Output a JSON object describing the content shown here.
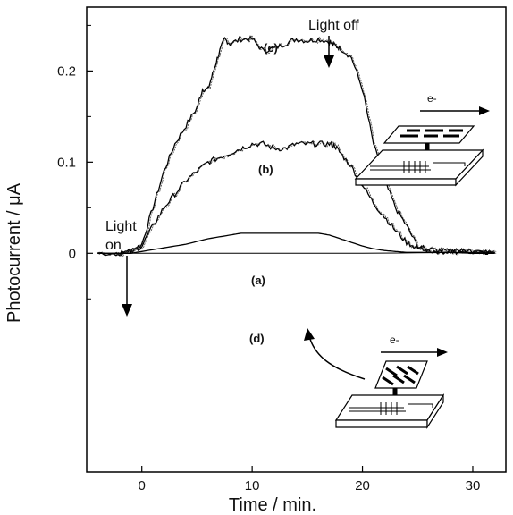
{
  "chart_data": {
    "type": "line",
    "title": "",
    "xlabel": "Time / min.",
    "ylabel": "Photocurrent / μA",
    "xlim": [
      -5,
      33
    ],
    "ylim": [
      -0.24,
      0.27
    ],
    "x_ticks": [
      0,
      10,
      20,
      30
    ],
    "y_ticks": [
      0,
      0.1,
      0.2
    ],
    "y_minor_ticks": [
      -0.05,
      0.05,
      0.15,
      0.25
    ],
    "y_tick_labels": [
      "0",
      "0.1",
      "0.2"
    ],
    "x_tick_labels": [
      "0",
      "10",
      "20",
      "30"
    ],
    "grid": false,
    "series": [
      {
        "name": "(c)",
        "x": [
          -4,
          -2,
          -1,
          0,
          1,
          2,
          3,
          4,
          5,
          5.5,
          6,
          6.5,
          7,
          7.5,
          8,
          9,
          10,
          11,
          12,
          13,
          14,
          15,
          16,
          17,
          17.5,
          18,
          19,
          20,
          21,
          22,
          23,
          24,
          25,
          26,
          27,
          28,
          29,
          30,
          31,
          32
        ],
        "y": [
          0,
          0,
          0.002,
          0.01,
          0.05,
          0.09,
          0.12,
          0.14,
          0.16,
          0.18,
          0.18,
          0.2,
          0.22,
          0.235,
          0.23,
          0.235,
          0.235,
          0.222,
          0.225,
          0.23,
          0.235,
          0.233,
          0.235,
          0.232,
          0.228,
          0.225,
          0.215,
          0.18,
          0.12,
          0.08,
          0.05,
          0.03,
          0.008,
          0.003,
          0.002,
          0.002,
          0.003,
          0.002,
          0.002,
          0.001
        ]
      },
      {
        "name": "(b)",
        "x": [
          -4,
          -2,
          -1,
          0,
          1,
          2,
          3,
          4,
          5,
          6,
          7,
          8,
          9,
          10,
          11,
          12,
          13,
          14,
          15,
          16,
          17,
          17.5,
          18,
          19,
          20,
          21,
          22,
          23,
          24,
          25,
          26,
          27,
          28,
          29,
          30,
          31,
          32
        ],
        "y": [
          0,
          0,
          0.002,
          0.008,
          0.03,
          0.05,
          0.065,
          0.08,
          0.09,
          0.1,
          0.105,
          0.11,
          0.115,
          0.12,
          0.12,
          0.115,
          0.115,
          0.12,
          0.12,
          0.12,
          0.12,
          0.118,
          0.11,
          0.095,
          0.075,
          0.055,
          0.04,
          0.025,
          0.012,
          0.006,
          0.004,
          0.003,
          0.002,
          0.002,
          0.002,
          0.001,
          0.001
        ]
      },
      {
        "name": "(a)",
        "x": [
          -4,
          -2,
          -1,
          0,
          2,
          4,
          6,
          8,
          9,
          10,
          12,
          14,
          16,
          17,
          18,
          19,
          20,
          21,
          22,
          23,
          24,
          26,
          28,
          30,
          32
        ],
        "y": [
          0,
          0,
          0,
          0.002,
          0.006,
          0.01,
          0.016,
          0.02,
          0.022,
          0.022,
          0.022,
          0.022,
          0.022,
          0.02,
          0.016,
          0.012,
          0.008,
          0.005,
          0.003,
          0.002,
          0.001,
          0.001,
          0.001,
          0,
          0
        ]
      },
      {
        "name": "(d)",
        "x": [
          -4,
          0,
          10,
          20,
          30,
          32
        ],
        "y": [
          0,
          0,
          0,
          0,
          0.001,
          0.001
        ]
      }
    ],
    "annotations": [
      {
        "text": "Light on",
        "lines": [
          "Light",
          "on"
        ],
        "x": -1
      },
      {
        "text": "Light off",
        "x": 17.5
      },
      {
        "text": "e-",
        "where": "inset-top"
      },
      {
        "text": "e-",
        "where": "inset-bottom"
      }
    ]
  }
}
